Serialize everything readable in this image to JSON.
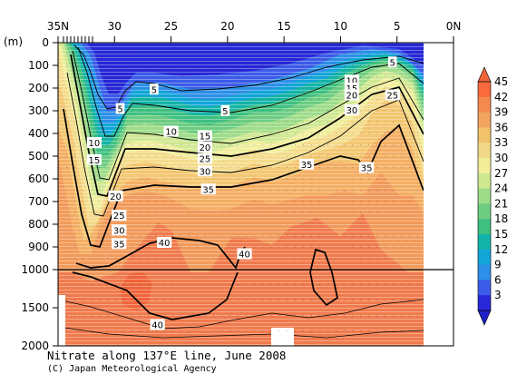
{
  "chart_data": {
    "type": "contour",
    "title": "Nitrate along 137°E line, June 2008",
    "credit": "(C) Japan Meteorological Agency",
    "ylabel": "(m)",
    "x_ticks": [
      "35N",
      "30",
      "25",
      "20",
      "15",
      "10",
      "5",
      "0N"
    ],
    "x_range": [
      35,
      0
    ],
    "depth_ticks": [
      "0",
      "100",
      "200",
      "300",
      "400",
      "500",
      "600",
      "700",
      "800",
      "900",
      "1000",
      "1500",
      "2000"
    ],
    "depth_range": [
      0,
      2000
    ],
    "scale_break_depth": 1000,
    "colorbar": {
      "labels": [
        "45",
        "42",
        "39",
        "36",
        "33",
        "30",
        "27",
        "24",
        "21",
        "18",
        "15",
        "12",
        "9",
        "6",
        "3"
      ],
      "colors": [
        "#fa6a3c",
        "#f58a50",
        "#f2a55e",
        "#f2c36c",
        "#f2d98a",
        "#f2ee9a",
        "#cfe891",
        "#9edc89",
        "#6ecd82",
        "#3ec080",
        "#12b3a8",
        "#12a6d8",
        "#2d8fe8",
        "#3c5be8",
        "#2828d8"
      ]
    },
    "contour_levels": [
      5,
      10,
      15,
      20,
      25,
      30,
      35,
      40
    ],
    "contour_labels": [
      {
        "text": "5",
        "lat": 29.5,
        "depth": 290
      },
      {
        "text": "5",
        "lat": 26.5,
        "depth": 205
      },
      {
        "text": "5",
        "lat": 20.2,
        "depth": 300
      },
      {
        "text": "5",
        "lat": 5.4,
        "depth": 85
      },
      {
        "text": "10",
        "lat": 31.8,
        "depth": 440
      },
      {
        "text": "10",
        "lat": 25.0,
        "depth": 390
      },
      {
        "text": "10",
        "lat": 9.0,
        "depth": 165
      },
      {
        "text": "15",
        "lat": 31.8,
        "depth": 515
      },
      {
        "text": "15",
        "lat": 22.0,
        "depth": 410
      },
      {
        "text": "15",
        "lat": 9.0,
        "depth": 200
      },
      {
        "text": "20",
        "lat": 29.9,
        "depth": 675
      },
      {
        "text": "20",
        "lat": 22.0,
        "depth": 460
      },
      {
        "text": "20",
        "lat": 9.0,
        "depth": 230
      },
      {
        "text": "25",
        "lat": 29.6,
        "depth": 760
      },
      {
        "text": "25",
        "lat": 22.0,
        "depth": 510
      },
      {
        "text": "25",
        "lat": 5.4,
        "depth": 230
      },
      {
        "text": "30",
        "lat": 29.6,
        "depth": 825
      },
      {
        "text": "30",
        "lat": 22.0,
        "depth": 565
      },
      {
        "text": "30",
        "lat": 9.0,
        "depth": 295
      },
      {
        "text": "35",
        "lat": 29.6,
        "depth": 885
      },
      {
        "text": "35",
        "lat": 21.7,
        "depth": 645
      },
      {
        "text": "35",
        "lat": 13.0,
        "depth": 535
      },
      {
        "text": "35",
        "lat": 7.7,
        "depth": 550
      },
      {
        "text": "40",
        "lat": 25.6,
        "depth": 880
      },
      {
        "text": "40",
        "lat": 18.5,
        "depth": 930
      },
      {
        "text": "40",
        "lat": 26.2,
        "depth": 1720
      }
    ]
  }
}
